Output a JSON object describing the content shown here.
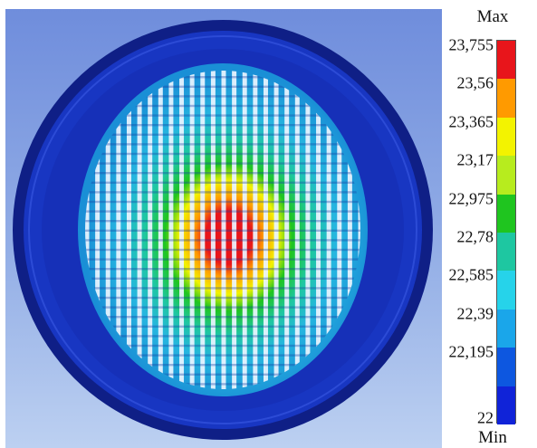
{
  "legend": {
    "max_label": "Max",
    "min_label": "Min",
    "ticks": [
      "23,755",
      "23,56",
      "23,365",
      "23,17",
      "22,975",
      "22,78",
      "22,585",
      "22,39",
      "22,195",
      "22"
    ],
    "colors": [
      "#e8151b",
      "#ff9a00",
      "#f3f300",
      "#b7ec1e",
      "#1fc51f",
      "#1ec7a1",
      "#26d3ea",
      "#1aa6ea",
      "#0d57e0",
      "#1023d8"
    ]
  },
  "scene": {
    "background_top": "#6f8ddc",
    "disk_color": "#1630b8",
    "rim_color": "#0f1f86"
  }
}
